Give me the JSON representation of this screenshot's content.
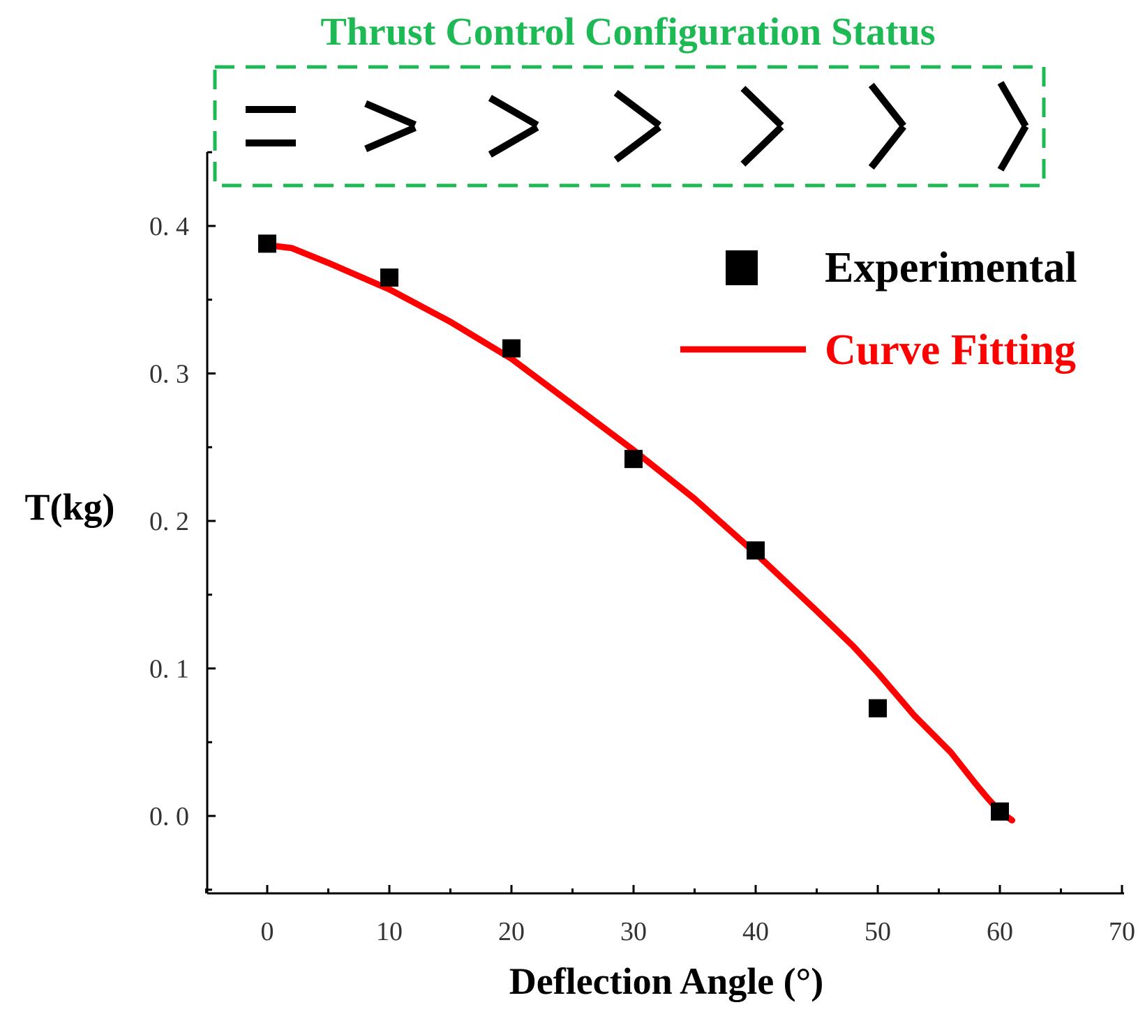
{
  "chart_data": {
    "type": "scatter",
    "title": "Thrust Control Configuration Status",
    "xlabel": "Deflection Angle (°)",
    "ylabel": "T(kg)",
    "xlim": [
      -5,
      70
    ],
    "ylim": [
      -0.05,
      0.45
    ],
    "x_ticks": [
      0,
      10,
      20,
      30,
      40,
      50,
      60,
      70
    ],
    "x_tick_labels": [
      "0",
      "10",
      "20",
      "30",
      "40",
      "50",
      "60",
      "70"
    ],
    "y_ticks": [
      0.0,
      0.1,
      0.2,
      0.3,
      0.4
    ],
    "y_tick_labels": [
      "0. 0",
      "0. 1",
      "0. 2",
      "0. 3",
      "0. 4"
    ],
    "grid": false,
    "legend_position": "top-right",
    "config_icon_angles": [
      0,
      10,
      20,
      30,
      40,
      50,
      60
    ],
    "series": [
      {
        "name": "Experimental",
        "kind": "scatter",
        "marker": "square",
        "color": "#000000",
        "x": [
          0,
          10,
          20,
          30,
          40,
          50,
          60
        ],
        "y": [
          0.388,
          0.365,
          0.317,
          0.242,
          0.18,
          0.073,
          0.003
        ]
      },
      {
        "name": "Curve Fitting",
        "kind": "line",
        "color": "#ff0000",
        "x": [
          0,
          2,
          5,
          10,
          15,
          20,
          25,
          30,
          35,
          40,
          45,
          48,
          50,
          53,
          56,
          58,
          59,
          60,
          60.5,
          61
        ],
        "y": [
          0.387,
          0.385,
          0.375,
          0.357,
          0.335,
          0.31,
          0.279,
          0.248,
          0.215,
          0.178,
          0.139,
          0.115,
          0.097,
          0.068,
          0.043,
          0.022,
          0.012,
          0.003,
          0.0,
          -0.003
        ]
      }
    ]
  },
  "colors": {
    "title": "#1db954",
    "box_border": "#1db954",
    "axis": "#000000",
    "fit_line": "#ff0000",
    "marker": "#000000"
  }
}
